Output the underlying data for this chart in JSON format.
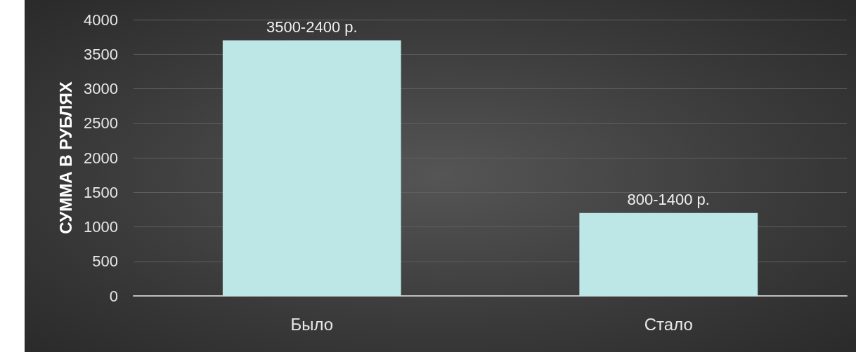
{
  "chart_data": {
    "type": "bar",
    "ylabel": "СУММА В РУБЛЯХ",
    "categories": [
      "Было",
      "Стало"
    ],
    "values": [
      3700,
      1200
    ],
    "value_labels": [
      "3500-2400 р.",
      "800-1400 р."
    ],
    "color": "#bde6e7",
    "ylim": [
      0,
      4000
    ],
    "yticks": [
      0,
      500,
      1000,
      1500,
      2000,
      2500,
      3000,
      3500,
      4000
    ],
    "grid": "y"
  }
}
